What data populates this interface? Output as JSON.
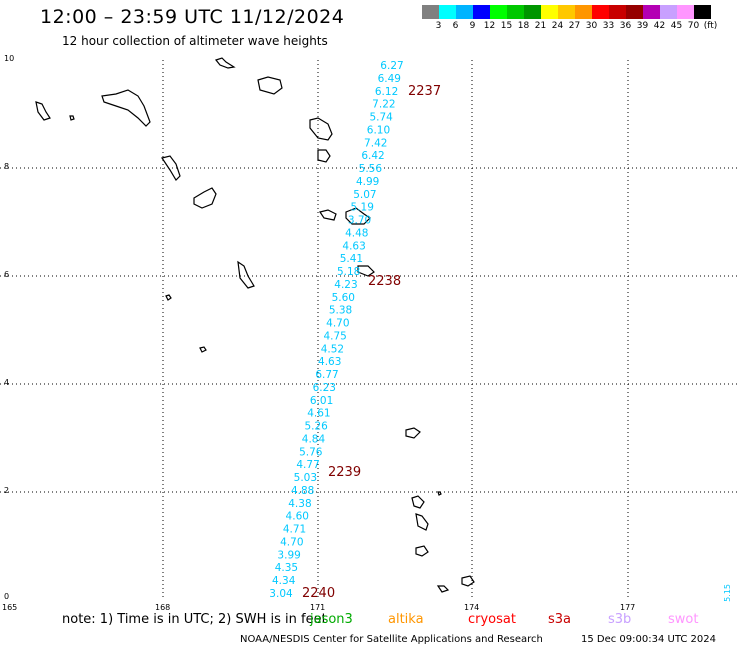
{
  "header": {
    "title": "12:00 – 23:59 UTC 11/12/2024",
    "subtitle": "12 hour collection of altimeter wave heights"
  },
  "scale": {
    "colors": [
      "#808080",
      "#00ffff",
      "#00b4ff",
      "#0000ff",
      "#00ff00",
      "#00c800",
      "#009600",
      "#ffff00",
      "#ffc800",
      "#ff9600",
      "#ff0000",
      "#c80000",
      "#960000",
      "#b400b4",
      "#c8a0ff",
      "#ff96ff",
      "#000000"
    ],
    "labels": [
      "3",
      "6",
      "9",
      "12",
      "15",
      "18",
      "21",
      "24",
      "27",
      "30",
      "33",
      "36",
      "39",
      "42",
      "45",
      "70",
      "(ft)"
    ]
  },
  "axes": {
    "lat_labels": [
      "10",
      "8",
      "6",
      "4",
      "2",
      "0"
    ],
    "lon_labels": [
      "165",
      "168",
      "171",
      "174",
      "177"
    ]
  },
  "track": {
    "color": "#00c8ff",
    "values": [
      "6.27",
      "6.49",
      "6.12",
      "7.22",
      "5.74",
      "6.10",
      "7.42",
      "6.42",
      "5.56",
      "4.99",
      "5.07",
      "5.19",
      "3.70",
      "4.48",
      "4.63",
      "5.41",
      "5.18",
      "4.23",
      "5.60",
      "5.38",
      "4.70",
      "4.75",
      "4.52",
      "4.63",
      "6.77",
      "6.23",
      "6.01",
      "4.61",
      "5.26",
      "4.84",
      "5.76",
      "4.77",
      "5.03",
      "4.88",
      "4.38",
      "4.60",
      "4.71",
      "4.70",
      "3.99",
      "4.35",
      "4.34",
      "3.04"
    ],
    "time_labels": [
      "2237",
      "2238",
      "2239",
      "2240"
    ],
    "time_color": "#800000",
    "edge_value": "5.15"
  },
  "footer": {
    "note": "note:  1) Time is in UTC; 2) SWH is in feet",
    "missions": [
      {
        "name": "jason3",
        "color": "#00aa00"
      },
      {
        "name": "altika",
        "color": "#ff9600"
      },
      {
        "name": "cryosat",
        "color": "#ff0000"
      },
      {
        "name": "s3a",
        "color": "#c80000"
      },
      {
        "name": "s3b",
        "color": "#c8a0ff"
      },
      {
        "name": "swot",
        "color": "#ff96ff"
      }
    ],
    "credit": "NOAA/NESDIS Center for Satellite Applications and Research",
    "timestamp": "15 Dec 09:00:34 UTC 2024"
  }
}
